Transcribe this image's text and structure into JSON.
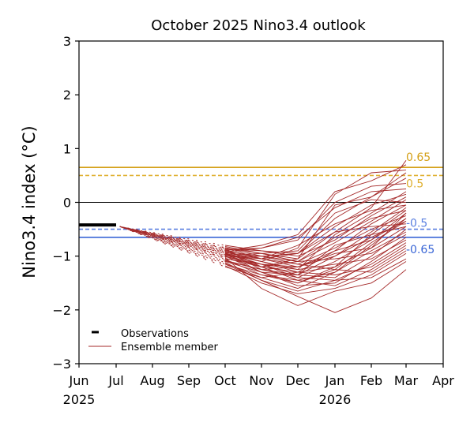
{
  "chart_data": {
    "type": "line",
    "title": "October 2025 Nino3.4 outlook",
    "xlabel": "",
    "ylabel": "Nino3.4 index (°C)",
    "ylim": [
      -3,
      3
    ],
    "yticks": [
      3,
      2,
      1,
      0,
      -1,
      -2,
      -3
    ],
    "ytick_labels": [
      "3",
      "2",
      "1",
      "0",
      "−1",
      "−2",
      "−3"
    ],
    "xlim": [
      "Jun 2025",
      "Apr 2026"
    ],
    "xticks": [
      {
        "label": "Jun",
        "sub": "2025",
        "month_index": 0
      },
      {
        "label": "Jul",
        "sub": "",
        "month_index": 1
      },
      {
        "label": "Aug",
        "sub": "",
        "month_index": 2
      },
      {
        "label": "Sep",
        "sub": "",
        "month_index": 3
      },
      {
        "label": "Oct",
        "sub": "",
        "month_index": 4
      },
      {
        "label": "Nov",
        "sub": "",
        "month_index": 5
      },
      {
        "label": "Dec",
        "sub": "",
        "month_index": 6
      },
      {
        "label": "Jan",
        "sub": "2026",
        "month_index": 7
      },
      {
        "label": "Feb",
        "sub": "",
        "month_index": 8
      },
      {
        "label": "Mar",
        "sub": "",
        "month_index": 9
      },
      {
        "label": "Apr",
        "sub": "",
        "month_index": 10
      }
    ],
    "grid": false,
    "legend": {
      "placement": "bottom-left",
      "entries": [
        {
          "label": "Observations",
          "color": "#000000",
          "style": "thick"
        },
        {
          "label": "Ensemble member",
          "color": "#a52a2a",
          "style": "thin"
        }
      ]
    },
    "thresholds": [
      {
        "value": 0.65,
        "label": "0.65",
        "color": "#d4a017",
        "style": "solid"
      },
      {
        "value": 0.5,
        "label": "0.5",
        "color": "#dfb030",
        "style": "dashed"
      },
      {
        "value": 0,
        "label": "",
        "color": "#000000",
        "style": "solid"
      },
      {
        "value": -0.5,
        "label": "-0.5",
        "color": "#5a7fe0",
        "style": "dashed"
      },
      {
        "value": -0.65,
        "label": "-0.65",
        "color": "#3a66d6",
        "style": "solid"
      }
    ],
    "observations": {
      "month_start": 0,
      "month_end": 1,
      "value": -0.42
    },
    "spinup": {
      "start_month": 1.1,
      "start_value": -0.45,
      "end_month": 4,
      "description": "dotted transition from last observation to each member's October value"
    },
    "ensemble_months": [
      4,
      5,
      6,
      7,
      8,
      9
    ],
    "ensemble_month_labels": [
      "Oct",
      "Nov",
      "Dec",
      "Jan",
      "Feb",
      "Mar"
    ],
    "series": [
      {
        "name": "member-1",
        "values": [
          -0.85,
          -0.95,
          -1.05,
          -0.55,
          -0.1,
          0.78
        ]
      },
      {
        "name": "member-2",
        "values": [
          -0.9,
          -0.8,
          -0.6,
          0.2,
          0.4,
          0.7
        ]
      },
      {
        "name": "member-3",
        "values": [
          -0.95,
          -1.1,
          -0.85,
          0.15,
          0.55,
          0.6
        ]
      },
      {
        "name": "member-4",
        "values": [
          -0.8,
          -0.9,
          -0.95,
          -0.3,
          0.1,
          0.55
        ]
      },
      {
        "name": "member-5",
        "values": [
          -1.0,
          -1.2,
          -1.05,
          -0.05,
          0.1,
          0.45
        ]
      },
      {
        "name": "member-6",
        "values": [
          -0.88,
          -0.85,
          -0.7,
          0.0,
          0.3,
          0.35
        ]
      },
      {
        "name": "member-7",
        "values": [
          -1.05,
          -1.15,
          -1.25,
          -0.6,
          -0.2,
          0.2
        ]
      },
      {
        "name": "member-8",
        "values": [
          -0.92,
          -1.0,
          -1.1,
          -0.75,
          -0.35,
          0.05
        ]
      },
      {
        "name": "member-9",
        "values": [
          -0.98,
          -0.95,
          -0.9,
          -0.2,
          0.05,
          0.0
        ]
      },
      {
        "name": "member-10",
        "values": [
          -0.85,
          -1.05,
          -1.2,
          -0.9,
          -0.4,
          -0.05
        ]
      },
      {
        "name": "member-11",
        "values": [
          -1.1,
          -1.3,
          -1.35,
          -1.0,
          -0.55,
          -0.1
        ]
      },
      {
        "name": "member-12",
        "values": [
          -0.95,
          -1.1,
          -1.3,
          -1.2,
          -0.6,
          -0.15
        ]
      },
      {
        "name": "member-13",
        "values": [
          -0.9,
          -1.25,
          -1.4,
          -1.1,
          -0.7,
          -0.2
        ]
      },
      {
        "name": "member-14",
        "values": [
          -1.02,
          -1.0,
          -1.15,
          -0.85,
          -0.5,
          -0.25
        ]
      },
      {
        "name": "member-15",
        "values": [
          -0.87,
          -1.2,
          -1.45,
          -1.3,
          -0.8,
          -0.3
        ]
      },
      {
        "name": "member-16",
        "values": [
          -1.15,
          -1.35,
          -1.5,
          -1.25,
          -0.75,
          -0.35
        ]
      },
      {
        "name": "member-17",
        "values": [
          -0.93,
          -1.05,
          -0.95,
          -0.55,
          -0.45,
          -0.4
        ]
      },
      {
        "name": "member-18",
        "values": [
          -1.08,
          -1.25,
          -1.2,
          -0.95,
          -0.85,
          -0.45
        ]
      },
      {
        "name": "member-19",
        "values": [
          -0.96,
          -1.15,
          -1.35,
          -1.4,
          -1.0,
          -0.5
        ]
      },
      {
        "name": "member-20",
        "values": [
          -1.2,
          -1.4,
          -1.6,
          -1.3,
          -0.9,
          -0.55
        ]
      },
      {
        "name": "member-21",
        "values": [
          -0.82,
          -0.95,
          -1.1,
          -1.05,
          -0.95,
          -0.6
        ]
      },
      {
        "name": "member-22",
        "values": [
          -1.0,
          -1.3,
          -1.55,
          -1.5,
          -1.1,
          -0.65
        ]
      },
      {
        "name": "member-23",
        "values": [
          -0.91,
          -1.1,
          -1.25,
          -1.15,
          -1.05,
          -0.7
        ]
      },
      {
        "name": "member-24",
        "values": [
          -1.12,
          -1.45,
          -1.65,
          -1.45,
          -1.15,
          -0.75
        ]
      },
      {
        "name": "member-25",
        "values": [
          -0.97,
          -1.2,
          -1.3,
          -1.35,
          -1.2,
          -0.8
        ]
      },
      {
        "name": "member-26",
        "values": [
          -1.06,
          -1.35,
          -1.45,
          -1.55,
          -1.25,
          -0.85
        ]
      },
      {
        "name": "member-27",
        "values": [
          -0.89,
          -1.05,
          -1.15,
          -1.25,
          -1.3,
          -0.9
        ]
      },
      {
        "name": "member-28",
        "values": [
          -1.18,
          -1.5,
          -1.7,
          -1.6,
          -1.35,
          -0.95
        ]
      },
      {
        "name": "member-29",
        "values": [
          -0.94,
          -1.15,
          -1.4,
          -1.45,
          -1.4,
          -1.05
        ]
      },
      {
        "name": "member-30",
        "values": [
          -1.03,
          -1.6,
          -1.92,
          -1.65,
          -1.5,
          -1.1
        ]
      },
      {
        "name": "member-31",
        "values": [
          -1.15,
          -1.45,
          -1.75,
          -2.05,
          -1.78,
          -1.25
        ]
      },
      {
        "name": "member-32",
        "values": [
          -0.86,
          -0.9,
          -1.0,
          -0.7,
          -0.25,
          0.1
        ]
      },
      {
        "name": "member-33",
        "values": [
          -0.99,
          -1.05,
          -0.8,
          -0.4,
          -0.15,
          -0.05
        ]
      },
      {
        "name": "member-34",
        "values": [
          -1.04,
          -1.2,
          -1.1,
          -0.65,
          -0.3,
          -0.15
        ]
      },
      {
        "name": "member-35",
        "values": [
          -0.92,
          -0.85,
          -0.65,
          -0.1,
          0.2,
          0.25
        ]
      },
      {
        "name": "member-36",
        "values": [
          -1.01,
          -1.15,
          -1.2,
          -1.0,
          -0.65,
          -0.35
        ]
      },
      {
        "name": "member-37",
        "values": [
          -0.95,
          -1.3,
          -1.5,
          -1.2,
          -0.85,
          -0.2
        ]
      },
      {
        "name": "member-38",
        "values": [
          -1.09,
          -1.25,
          -1.35,
          -0.8,
          -0.6,
          -0.45
        ]
      },
      {
        "name": "member-39",
        "values": [
          -0.84,
          -1.0,
          -0.95,
          -0.45,
          -0.05,
          0.15
        ]
      },
      {
        "name": "member-40",
        "values": [
          -1.13,
          -1.4,
          -1.3,
          -0.9,
          -0.7,
          -0.3
        ]
      }
    ],
    "colors": {
      "ensemble": "#a52a2a",
      "observations": "#000000",
      "axes": "#000000"
    }
  }
}
